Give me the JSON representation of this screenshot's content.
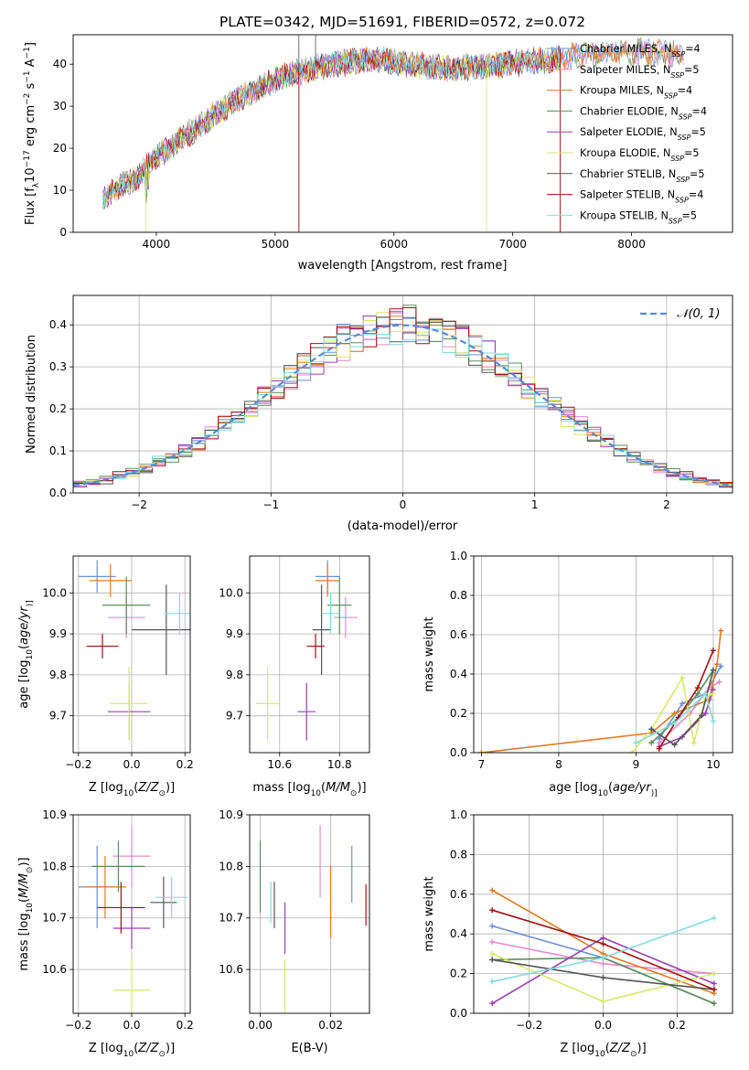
{
  "figure": {
    "title": "PLATE=0342, MJD=51691, FIBERID=0572, z=0.072",
    "colors": [
      "#6a8fdc",
      "#e58ccb",
      "#e07b22",
      "#5c8c5a",
      "#9b3fb5",
      "#d7e86a",
      "#555555",
      "#a01010",
      "#86dbe0"
    ]
  },
  "legend": {
    "entries": [
      {
        "prefix": "Chabrier MILES, N",
        "sub": "SSP",
        "suffix": "=4"
      },
      {
        "prefix": "Salpeter MILES, N",
        "sub": "SSP",
        "suffix": "=5"
      },
      {
        "prefix": "Kroupa MILES, N",
        "sub": "SSP",
        "suffix": "=4"
      },
      {
        "prefix": "Chabrier ELODIE, N",
        "sub": "SSP",
        "suffix": "=4"
      },
      {
        "prefix": "Salpeter ELODIE, N",
        "sub": "SSP",
        "suffix": "=5"
      },
      {
        "prefix": "Kroupa ELODIE, N",
        "sub": "SSP",
        "suffix": "=5"
      },
      {
        "prefix": "Chabrier STELIB, N",
        "sub": "SSP",
        "suffix": "=5"
      },
      {
        "prefix": "Salpeter STELIB, N",
        "sub": "SSP",
        "suffix": "=4"
      },
      {
        "prefix": "Kroupa STELIB, N",
        "sub": "SSP",
        "suffix": "=5"
      }
    ]
  },
  "chart_data": [
    {
      "id": "spectrum",
      "type": "line",
      "title": "PLATE=0342, MJD=51691, FIBERID=0572, z=0.072",
      "xlabel": "wavelength [Angstrom, rest frame]",
      "ylabel_parts": [
        "Flux [f",
        "λ",
        "10",
        "−17",
        " erg cm",
        "−2",
        " s",
        "−1",
        " A",
        "−1",
        "]"
      ],
      "xlim": [
        3300,
        8850
      ],
      "ylim": [
        0,
        47
      ],
      "xticks": [
        "4000",
        "5000",
        "6000",
        "7000",
        "8000"
      ],
      "yticks": [
        "0",
        "10",
        "20",
        "30",
        "40"
      ],
      "continuum": [
        [
          3550,
          8
        ],
        [
          3700,
          11
        ],
        [
          3850,
          13
        ],
        [
          3950,
          17
        ],
        [
          4100,
          20
        ],
        [
          4250,
          23
        ],
        [
          4400,
          26
        ],
        [
          4550,
          29
        ],
        [
          4700,
          32
        ],
        [
          4850,
          34
        ],
        [
          5000,
          36
        ],
        [
          5150,
          38
        ],
        [
          5300,
          39
        ],
        [
          5500,
          40
        ],
        [
          5700,
          41
        ],
        [
          5900,
          41
        ],
        [
          6100,
          40
        ],
        [
          6300,
          39.5
        ],
        [
          6500,
          39
        ],
        [
          6700,
          39.5
        ],
        [
          6900,
          40
        ],
        [
          7100,
          40.5
        ],
        [
          7300,
          41
        ],
        [
          7500,
          42
        ],
        [
          7700,
          42.5
        ],
        [
          7900,
          43
        ],
        [
          8100,
          43
        ],
        [
          8300,
          42.5
        ],
        [
          8450,
          42
        ]
      ],
      "series_ranges": [
        [
          3550,
          8440
        ],
        [
          3550,
          8440
        ],
        [
          3550,
          8440
        ],
        [
          3550,
          8440
        ],
        [
          3550,
          7400
        ],
        [
          3550,
          7400
        ],
        [
          3550,
          7400
        ],
        [
          3550,
          7400
        ],
        [
          3550,
          7400
        ]
      ],
      "drops": [
        [
          3910,
          5
        ],
        [
          5200,
          6
        ],
        [
          5200,
          7
        ],
        [
          6780,
          5
        ],
        [
          7400,
          6
        ],
        [
          7400,
          7
        ]
      ]
    },
    {
      "id": "residuals",
      "type": "histogram",
      "xlabel": "(data-model)/error",
      "ylabel": "Normed distribution",
      "xlim": [
        -2.5,
        2.5
      ],
      "ylim": [
        0,
        0.47
      ],
      "xticks": [
        "−2",
        "−1",
        "0",
        "1",
        "2"
      ],
      "yticks": [
        "0.0",
        "0.1",
        "0.2",
        "0.3",
        "0.4"
      ],
      "bin_width": 0.1,
      "grid": true,
      "legend_label": "𝒩(0, 1)",
      "legend_loc": "upper right"
    },
    {
      "id": "age-vs-Z",
      "type": "errorbar",
      "xlabel_parts": [
        "Z [log",
        "10",
        "(",
        "Z/Z",
        "⊙",
        ")]"
      ],
      "ylabel_parts": [
        "age  [log",
        "10",
        "(",
        "age/yr",
        ")]"
      ],
      "xlim": [
        -0.22,
        0.22
      ],
      "ylim": [
        9.61,
        10.09
      ],
      "xticks": [
        "−0.2",
        "0.0",
        "0.2"
      ],
      "yticks": [
        "9.7",
        "9.8",
        "9.9",
        "10.0"
      ],
      "grid": true,
      "points": [
        {
          "x": -0.13,
          "xerr": 0.07,
          "y": 10.04,
          "yerr": 0.04
        },
        {
          "x": -0.02,
          "xerr": 0.07,
          "y": 9.94,
          "yerr": 0.05
        },
        {
          "x": -0.08,
          "xerr": 0.08,
          "y": 10.03,
          "yerr": 0.04
        },
        {
          "x": -0.02,
          "xerr": 0.09,
          "y": 9.97,
          "yerr": 0.07
        },
        {
          "x": -0.01,
          "xerr": 0.08,
          "y": 9.71,
          "yerr": 0.07
        },
        {
          "x": -0.01,
          "xerr": 0.07,
          "y": 9.73,
          "yerr": 0.09
        },
        {
          "x": 0.13,
          "xerr": 0.13,
          "y": 9.91,
          "yerr": 0.11
        },
        {
          "x": -0.11,
          "xerr": 0.06,
          "y": 9.87,
          "yerr": 0.03
        },
        {
          "x": 0.18,
          "xerr": 0.06,
          "y": 9.95,
          "yerr": 0.05
        }
      ]
    },
    {
      "id": "age-vs-mass",
      "type": "errorbar",
      "xlabel_parts": [
        "mass [log",
        "10",
        "(",
        "M/M",
        "⊙",
        ")]"
      ],
      "ylabel_parts": [],
      "xlim": [
        10.5,
        10.9
      ],
      "ylim": [
        9.61,
        10.09
      ],
      "xticks": [
        "10.6",
        "10.8"
      ],
      "yticks": [
        "9.7",
        "9.8",
        "9.9",
        "10.0"
      ],
      "grid": true,
      "points": [
        {
          "x": 10.76,
          "xerr": 0.04,
          "y": 10.04,
          "yerr": 0.04
        },
        {
          "x": 10.82,
          "xerr": 0.04,
          "y": 9.94,
          "yerr": 0.05
        },
        {
          "x": 10.76,
          "xerr": 0.04,
          "y": 10.03,
          "yerr": 0.04
        },
        {
          "x": 10.8,
          "xerr": 0.04,
          "y": 9.97,
          "yerr": 0.07
        },
        {
          "x": 10.69,
          "xerr": 0.03,
          "y": 9.71,
          "yerr": 0.07
        },
        {
          "x": 10.56,
          "xerr": 0.04,
          "y": 9.73,
          "yerr": 0.09
        },
        {
          "x": 10.74,
          "xerr": 0.03,
          "y": 9.91,
          "yerr": 0.11
        },
        {
          "x": 10.72,
          "xerr": 0.03,
          "y": 9.87,
          "yerr": 0.03
        },
        {
          "x": 10.77,
          "xerr": 0.03,
          "y": 9.95,
          "yerr": 0.05
        }
      ]
    },
    {
      "id": "weight-vs-age",
      "type": "line",
      "xlabel_parts": [
        "age  [log",
        "10",
        "(",
        "age/yr",
        ")]"
      ],
      "ylabel": "mass weight",
      "xlim": [
        6.9,
        10.25
      ],
      "ylim": [
        0,
        1
      ],
      "xticks": [
        "7",
        "8",
        "9",
        "10"
      ],
      "yticks": [
        "0.0",
        "0.2",
        "0.4",
        "0.6",
        "0.8",
        "1.0"
      ],
      "grid": true,
      "series": [
        {
          "x": [
            9.3,
            9.6,
            9.9,
            10.1
          ],
          "y": [
            0.07,
            0.25,
            0.3,
            0.44
          ]
        },
        {
          "x": [
            9.3,
            9.7,
            9.95,
            10.08
          ],
          "y": [
            0.05,
            0.2,
            0.33,
            0.36
          ]
        },
        {
          "x": [
            7.0,
            9.2,
            9.5,
            9.95,
            10.05,
            10.1
          ],
          "y": [
            0.0,
            0.1,
            0.2,
            0.27,
            0.45,
            0.62
          ]
        },
        {
          "x": [
            9.2,
            9.55,
            9.8,
            10.0
          ],
          "y": [
            0.05,
            0.18,
            0.3,
            0.42
          ]
        },
        {
          "x": [
            9.3,
            9.6,
            9.9,
            10.0
          ],
          "y": [
            0.03,
            0.08,
            0.2,
            0.32
          ]
        },
        {
          "x": [
            8.95,
            9.2,
            9.6,
            9.75,
            9.9,
            10.0
          ],
          "y": [
            0.0,
            0.12,
            0.38,
            0.05,
            0.28,
            0.3
          ]
        },
        {
          "x": [
            9.2,
            9.5,
            9.85,
            10.0
          ],
          "y": [
            0.12,
            0.04,
            0.19,
            0.42
          ]
        },
        {
          "x": [
            9.3,
            9.55,
            9.8,
            10.0
          ],
          "y": [
            0.02,
            0.18,
            0.33,
            0.52
          ]
        },
        {
          "x": [
            9.0,
            9.5,
            9.9,
            10.0
          ],
          "y": [
            0.05,
            0.15,
            0.3,
            0.16
          ]
        }
      ]
    },
    {
      "id": "mass-vs-Z",
      "type": "errorbar",
      "xlabel_parts": [
        "Z [log",
        "10",
        "(",
        "Z/Z",
        "⊙",
        ")]"
      ],
      "ylabel_parts": [
        "mass [log",
        "10",
        "(",
        "M/M",
        "⊙",
        ")]"
      ],
      "xlim": [
        -0.22,
        0.22
      ],
      "ylim": [
        10.515,
        10.9
      ],
      "xticks": [
        "−0.2",
        "0.0",
        "0.2"
      ],
      "yticks": [
        "10.6",
        "10.7",
        "10.8",
        "10.9"
      ],
      "grid": true,
      "points": [
        {
          "x": -0.13,
          "xerr": 0.07,
          "y": 10.76,
          "yerr": 0.08
        },
        {
          "x": 0.0,
          "xerr": 0.07,
          "y": 10.82,
          "yerr": 0.06
        },
        {
          "x": -0.1,
          "xerr": 0.08,
          "y": 10.76,
          "yerr": 0.06
        },
        {
          "x": -0.05,
          "xerr": 0.1,
          "y": 10.8,
          "yerr": 0.05
        },
        {
          "x": 0.0,
          "xerr": 0.07,
          "y": 10.68,
          "yerr": 0.04
        },
        {
          "x": 0.0,
          "xerr": 0.07,
          "y": 10.56,
          "yerr": 0.06
        },
        {
          "x": 0.12,
          "xerr": 0.05,
          "y": 10.73,
          "yerr": 0.05
        },
        {
          "x": -0.04,
          "xerr": 0.09,
          "y": 10.72,
          "yerr": 0.05
        },
        {
          "x": 0.15,
          "xerr": 0.06,
          "y": 10.74,
          "yerr": 0.04
        }
      ]
    },
    {
      "id": "mass-vs-EBV",
      "type": "errorbar",
      "xlabel": "E(B-V)",
      "xlim": [
        -0.003,
        0.031
      ],
      "ylim": [
        10.515,
        10.9
      ],
      "xticks": [
        "0.00",
        "0.02"
      ],
      "yticks": [
        "10.6",
        "10.7",
        "10.8",
        "10.9"
      ],
      "grid": true,
      "points": [
        {
          "x": 0.026,
          "y": 10.785,
          "yerr": 0.055
        },
        {
          "x": 0.017,
          "y": 10.81,
          "yerr": 0.07
        },
        {
          "x": 0.02,
          "y": 10.73,
          "yerr": 0.07
        },
        {
          "x": 0.0,
          "y": 10.78,
          "yerr": 0.07
        },
        {
          "x": 0.007,
          "y": 10.68,
          "yerr": 0.05
        },
        {
          "x": 0.007,
          "y": 10.56,
          "yerr": 0.06
        },
        {
          "x": 0.004,
          "y": 10.725,
          "yerr": 0.045
        },
        {
          "x": 0.03,
          "y": 10.725,
          "yerr": 0.04
        },
        {
          "x": 0.003,
          "y": 10.73,
          "yerr": 0.04
        }
      ]
    },
    {
      "id": "weight-vs-Z",
      "type": "line",
      "xlabel_parts": [
        "Z [log",
        "10",
        "(",
        "Z/Z",
        "⊙",
        ")]"
      ],
      "ylabel": "mass weight",
      "xlim": [
        -0.35,
        0.35
      ],
      "ylim": [
        0,
        1
      ],
      "xticks": [
        "−0.2",
        "0.0",
        "0.2"
      ],
      "yticks": [
        "0.0",
        "0.2",
        "0.4",
        "0.6",
        "0.8",
        "1.0"
      ],
      "grid": true,
      "series": [
        {
          "x": [
            -0.3,
            0.0,
            0.3
          ],
          "y": [
            0.44,
            0.28,
            0.05
          ]
        },
        {
          "x": [
            -0.3,
            0.0,
            0.3
          ],
          "y": [
            0.36,
            0.25,
            0.2
          ]
        },
        {
          "x": [
            -0.3,
            0.0,
            0.3
          ],
          "y": [
            0.62,
            0.3,
            0.1
          ]
        },
        {
          "x": [
            -0.3,
            0.0,
            0.3
          ],
          "y": [
            0.27,
            0.28,
            0.05
          ]
        },
        {
          "x": [
            -0.3,
            0.0,
            0.3
          ],
          "y": [
            0.05,
            0.38,
            0.15
          ]
        },
        {
          "x": [
            -0.3,
            0.0,
            0.3
          ],
          "y": [
            0.3,
            0.06,
            0.2
          ]
        },
        {
          "x": [
            -0.3,
            0.0,
            0.3
          ],
          "y": [
            0.27,
            0.18,
            0.12
          ]
        },
        {
          "x": [
            -0.3,
            0.0,
            0.3
          ],
          "y": [
            0.52,
            0.35,
            0.12
          ]
        },
        {
          "x": [
            -0.3,
            0.0,
            0.3
          ],
          "y": [
            0.16,
            0.28,
            0.48
          ]
        }
      ]
    }
  ]
}
